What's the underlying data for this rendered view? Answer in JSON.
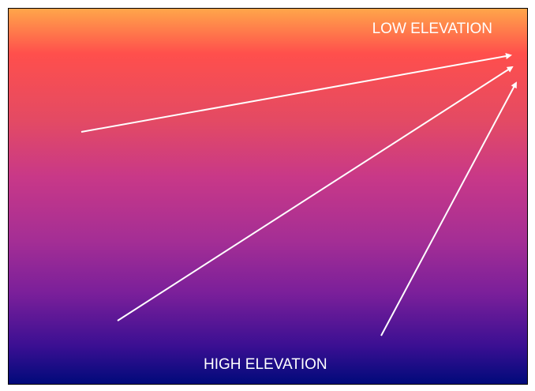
{
  "labels": {
    "top": "LOW ELEVATION",
    "bottom": "HIGH ELEVATION"
  },
  "colors": {
    "text": "#ffffff",
    "arrow": "#ffffff",
    "gradient_top": "#ffa64a",
    "gradient_bottom": "#000a7a"
  },
  "arrows": [
    {
      "name": "arrow-from-left-low-angle"
    },
    {
      "name": "arrow-from-lower-left"
    },
    {
      "name": "arrow-from-bottom"
    }
  ]
}
